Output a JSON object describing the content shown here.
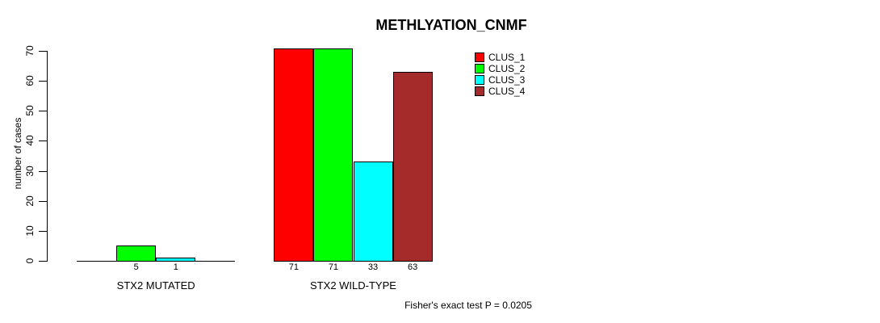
{
  "chart_data": {
    "type": "bar",
    "title": "METHLYATION_CNMF",
    "ylabel": "number of cases",
    "xlabel": "",
    "ylim": [
      0,
      70
    ],
    "y_ticks": [
      0,
      10,
      20,
      30,
      40,
      50,
      60,
      70
    ],
    "series": [
      "CLUS_1",
      "CLUS_2",
      "CLUS_3",
      "CLUS_4"
    ],
    "colors": [
      "#FF0000",
      "#00FF00",
      "#00FFFF",
      "#A52A2A"
    ],
    "groups": [
      {
        "label": "STX2 MUTATED",
        "values": [
          0,
          5,
          1,
          0
        ],
        "value_labels": [
          "",
          "5",
          "1",
          ""
        ]
      },
      {
        "label": "STX2 WILD-TYPE",
        "values": [
          71,
          71,
          33,
          63
        ],
        "value_labels": [
          "71",
          "71",
          "33",
          "63"
        ]
      }
    ],
    "annotation": "Fisher's exact test P = 0.0205",
    "legend_position": "top-right",
    "grid": false
  }
}
